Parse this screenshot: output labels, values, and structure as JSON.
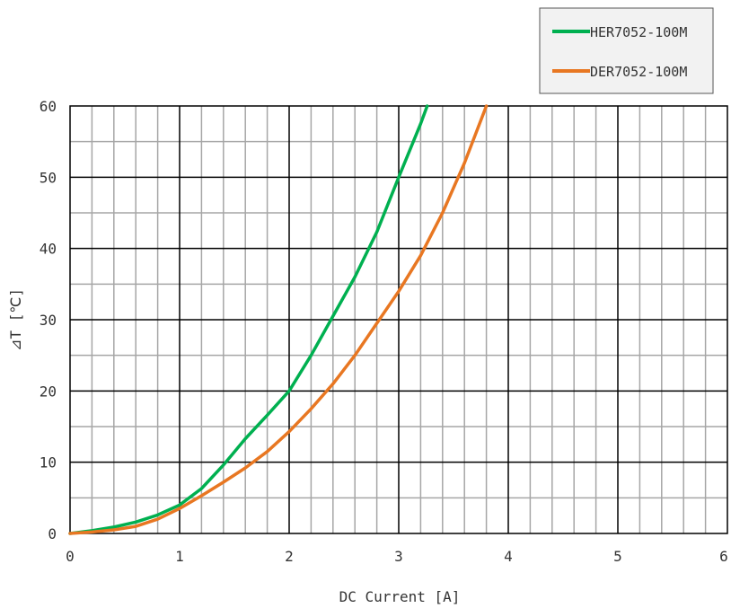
{
  "chart_data": {
    "type": "line",
    "title": "",
    "xlabel": "DC Current [A]",
    "ylabel": "⊿T [℃]",
    "xlim": [
      0,
      6
    ],
    "ylim": [
      0,
      60
    ],
    "x_major_ticks": [
      0,
      1,
      2,
      3,
      4,
      5,
      6
    ],
    "y_major_ticks": [
      0,
      10,
      20,
      30,
      40,
      50,
      60
    ],
    "x_minor_step": 0.2,
    "y_minor_step": 5,
    "grid": true,
    "legend_position": "top-right",
    "series": [
      {
        "name": "HER7052-100M",
        "color": "#00b050",
        "x": [
          0,
          0.2,
          0.4,
          0.6,
          0.8,
          1.0,
          1.2,
          1.4,
          1.6,
          1.8,
          2.0,
          2.2,
          2.4,
          2.6,
          2.8,
          3.0,
          3.2,
          3.26
        ],
        "y": [
          0,
          0.4,
          0.9,
          1.6,
          2.6,
          4.0,
          6.3,
          9.6,
          13.3,
          16.6,
          20.0,
          25.0,
          30.5,
          36.0,
          42.3,
          50.0,
          57.5,
          60.0
        ]
      },
      {
        "name": "DER7052-100M",
        "color": "#e87722",
        "x": [
          0,
          0.2,
          0.4,
          0.6,
          0.8,
          1.0,
          1.2,
          1.4,
          1.6,
          1.8,
          2.0,
          2.2,
          2.4,
          2.6,
          2.8,
          3.0,
          3.2,
          3.4,
          3.6,
          3.8
        ],
        "y": [
          0,
          0.2,
          0.5,
          1.0,
          2.0,
          3.5,
          5.3,
          7.2,
          9.2,
          11.5,
          14.3,
          17.5,
          21.0,
          25.0,
          29.5,
          34.0,
          39.0,
          45.0,
          52.0,
          60.0
        ]
      }
    ]
  }
}
